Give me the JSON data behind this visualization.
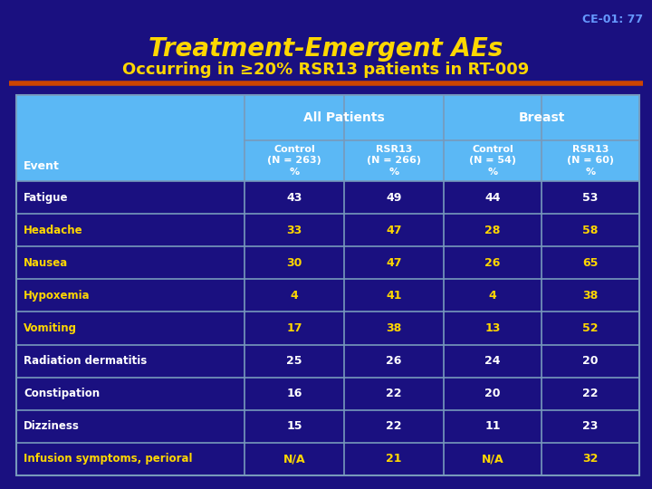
{
  "title_line1": "Treatment-Emergent AEs",
  "title_line2": "Occurring in ≥20% RSR13 patients in RT-009",
  "slide_id": "CE-01: 77",
  "bg_color": "#1a1080",
  "title_color": "#FFD700",
  "slide_id_color": "#6699FF",
  "orange_line_color": "#CC4400",
  "header_bg": "#5BB8F5",
  "col_header1": "All Patients",
  "col_header2": "Breast",
  "sub_col1": "Control\n(N = 263)\n%",
  "sub_col2": "RSR13\n(N = 266)\n%",
  "sub_col3": "Control\n(N = 54)\n%",
  "sub_col4": "RSR13\n(N = 60)\n%",
  "event_label": "Event",
  "rows": [
    {
      "event": "Fatigue",
      "c1": "43",
      "c2": "49",
      "c3": "44",
      "c4": "53",
      "highlight": false
    },
    {
      "event": "Headache",
      "c1": "33",
      "c2": "47",
      "c3": "28",
      "c4": "58",
      "highlight": true
    },
    {
      "event": "Nausea",
      "c1": "30",
      "c2": "47",
      "c3": "26",
      "c4": "65",
      "highlight": true
    },
    {
      "event": "Hypoxemia",
      "c1": "4",
      "c2": "41",
      "c3": "4",
      "c4": "38",
      "highlight": true
    },
    {
      "event": "Vomiting",
      "c1": "17",
      "c2": "38",
      "c3": "13",
      "c4": "52",
      "highlight": true
    },
    {
      "event": "Radiation dermatitis",
      "c1": "25",
      "c2": "26",
      "c3": "24",
      "c4": "20",
      "highlight": false
    },
    {
      "event": "Constipation",
      "c1": "16",
      "c2": "22",
      "c3": "20",
      "c4": "22",
      "highlight": false
    },
    {
      "event": "Dizziness",
      "c1": "15",
      "c2": "22",
      "c3": "11",
      "c4": "23",
      "highlight": false
    },
    {
      "event": "Infusion symptoms, perioral",
      "c1": "N/A",
      "c2": "21",
      "c3": "N/A",
      "c4": "32",
      "highlight": true
    }
  ],
  "row_text_white": "#FFFFFF",
  "row_text_yellow": "#FFD700",
  "border_color": "#7799BB"
}
